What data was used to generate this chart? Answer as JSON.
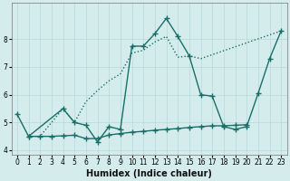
{
  "xlabel": "Humidex (Indice chaleur)",
  "background_color": "#d4ecec",
  "grid_color": "#b8d8d8",
  "line_color": "#1a6e6a",
  "x_all": [
    0,
    1,
    2,
    3,
    4,
    5,
    6,
    7,
    8,
    9,
    10,
    11,
    12,
    13,
    14,
    15,
    16,
    17,
    18,
    19,
    20,
    21,
    22,
    23
  ],
  "curve_zigzag": {
    "x": [
      0,
      1,
      4,
      5,
      6,
      7,
      8,
      9,
      10,
      11,
      12,
      13,
      14,
      15,
      16,
      17,
      18,
      19,
      20,
      21,
      22,
      23
    ],
    "y": [
      5.3,
      4.5,
      5.5,
      5.0,
      4.9,
      4.3,
      4.85,
      4.75,
      7.75,
      7.75,
      8.2,
      8.75,
      8.1,
      7.4,
      6.0,
      5.95,
      4.85,
      4.75,
      4.85,
      6.05,
      7.3,
      8.3
    ],
    "linestyle": "-",
    "marker": "+"
  },
  "curve_flat": {
    "x": [
      1,
      2,
      3,
      4,
      5,
      6,
      7,
      8,
      9,
      10,
      11,
      12,
      13,
      14,
      15,
      16,
      17,
      18,
      19,
      20
    ],
    "y": [
      4.5,
      4.5,
      4.5,
      4.52,
      4.54,
      4.42,
      4.42,
      4.55,
      4.6,
      4.65,
      4.68,
      4.72,
      4.75,
      4.78,
      4.82,
      4.85,
      4.88,
      4.88,
      4.9,
      4.92
    ],
    "linestyle": "-",
    "marker": "+"
  },
  "curve_dotted": {
    "x": [
      1,
      2,
      4,
      5,
      6,
      7,
      8,
      9,
      10,
      11,
      12,
      13,
      14,
      15,
      16,
      23
    ],
    "y": [
      4.5,
      4.5,
      5.5,
      5.0,
      5.75,
      6.15,
      6.5,
      6.75,
      7.5,
      7.6,
      7.9,
      8.1,
      7.35,
      7.4,
      7.3,
      8.3
    ],
    "linestyle": "dotted",
    "marker": null
  },
  "ylim": [
    3.85,
    9.3
  ],
  "xlim": [
    -0.5,
    23.5
  ],
  "yticks": [
    4,
    5,
    6,
    7,
    8
  ],
  "xticks": [
    0,
    1,
    2,
    3,
    4,
    5,
    6,
    7,
    8,
    9,
    10,
    11,
    12,
    13,
    14,
    15,
    16,
    17,
    18,
    19,
    20,
    21,
    22,
    23
  ],
  "markersize": 4,
  "linewidth": 1.0,
  "xlabel_fontsize": 7,
  "tick_fontsize": 5.5
}
